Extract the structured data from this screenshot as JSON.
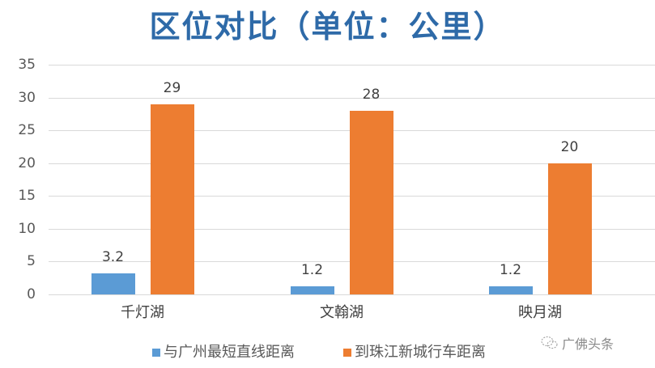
{
  "chart_data": {
    "type": "bar",
    "title": "区位对比（单位：公里）",
    "xlabel": "",
    "ylabel": "",
    "ylim": [
      0,
      35
    ],
    "yticks": [
      0,
      5,
      10,
      15,
      20,
      25,
      30,
      35
    ],
    "grid": true,
    "legend_position": "bottom",
    "categories": [
      "千灯湖",
      "文翰湖",
      "映月湖"
    ],
    "series": [
      {
        "name": "与广州最短直线距离",
        "color": "#5b9bd5",
        "values": [
          3.2,
          1.2,
          1.2
        ],
        "labels": [
          "3.2",
          "1.2",
          "1.2"
        ]
      },
      {
        "name": "到珠江新城行车距离",
        "color": "#ed7d31",
        "values": [
          29,
          28,
          20
        ],
        "labels": [
          "29",
          "28",
          "20"
        ]
      }
    ]
  },
  "watermark": {
    "text": "广佛头条",
    "icon": "wechat-icon"
  }
}
